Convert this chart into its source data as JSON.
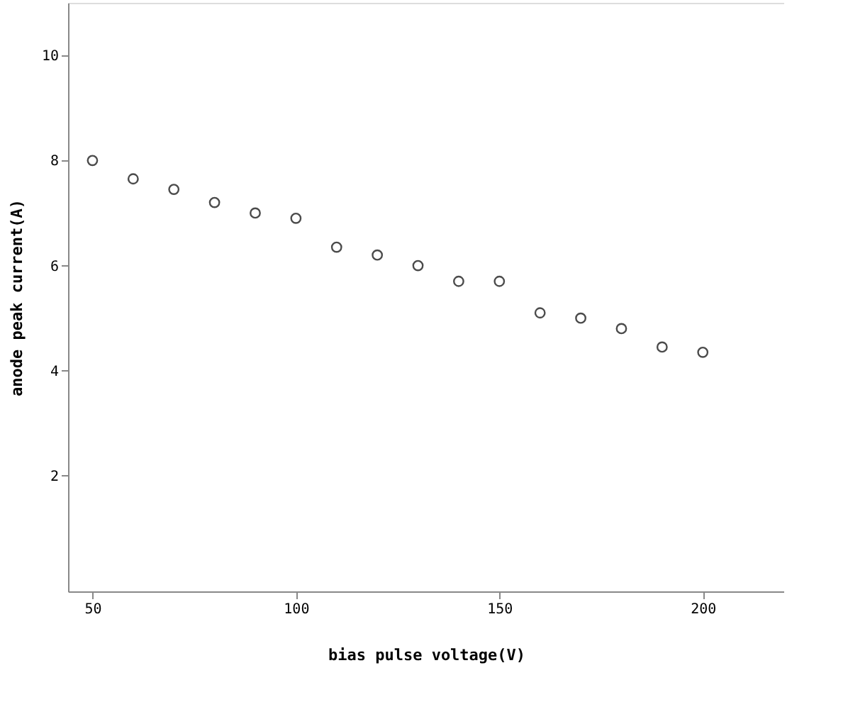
{
  "chart_data": {
    "type": "scatter",
    "xlabel": "bias pulse voltage(V)",
    "ylabel": "anode peak current(A)",
    "x": [
      50,
      60,
      70,
      80,
      90,
      100,
      110,
      120,
      130,
      140,
      150,
      160,
      170,
      180,
      190,
      200
    ],
    "series": [
      {
        "color": "#000000",
        "values": [
          8.0,
          7.65,
          7.45,
          7.2,
          7.0,
          6.9,
          6.35,
          6.2,
          6.0,
          5.7,
          5.7,
          5.1,
          5.0,
          4.8,
          4.45,
          4.35
        ]
      }
    ],
    "xlim": [
      44,
      220
    ],
    "ylim": [
      -0.2,
      11
    ],
    "xticks": [
      50,
      100,
      150,
      200
    ],
    "yticks": [
      2,
      4,
      6,
      8,
      10
    ],
    "marker": "circle",
    "grid": false,
    "legend": false
  }
}
